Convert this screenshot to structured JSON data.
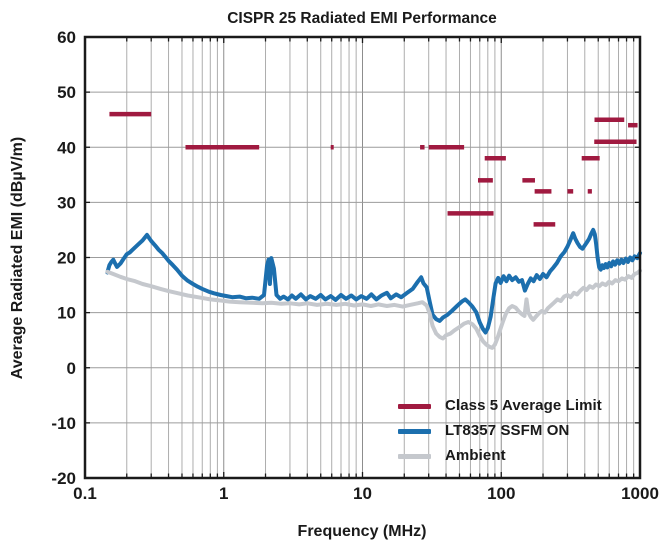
{
  "chart_data": {
    "type": "line",
    "title": "CISPR 25 Radiated EMI Performance",
    "xlabel": "Frequency (MHz)",
    "ylabel": "Average Radiated EMI (dBµV/m)",
    "xscale": "log",
    "xlim": [
      0.1,
      1000
    ],
    "ylim": [
      -20,
      60
    ],
    "xticks": [
      0.1,
      1,
      10,
      100,
      1000
    ],
    "xtick_labels": [
      "0.1",
      "1",
      "10",
      "100",
      "1000"
    ],
    "yticks": [
      -20,
      -10,
      0,
      10,
      20,
      30,
      40,
      50,
      60
    ],
    "ytick_labels": [
      "-20",
      "-10",
      "0",
      "10",
      "20",
      "30",
      "40",
      "50",
      "60"
    ],
    "grid": true,
    "legend_position": "lower right",
    "colors": {
      "limit": "#A01A40",
      "ssfm": "#1C6FAE",
      "ambient": "#C5C8CD",
      "grid": "#9c9c9c",
      "frame": "#1a1a1a",
      "text": "#1a1a1a"
    },
    "series": [
      {
        "name": "Class 5 Average Limit",
        "type": "segments",
        "color_key": "limit",
        "segments_format": [
          "f_start_MHz",
          "f_end_MHz",
          "limit_dBuV_per_m"
        ],
        "segments": [
          [
            0.15,
            0.3,
            46
          ],
          [
            0.53,
            1.8,
            40
          ],
          [
            5.9,
            6.2,
            40
          ],
          [
            26,
            28,
            40
          ],
          [
            30,
            54,
            40
          ],
          [
            41,
            88,
            28
          ],
          [
            68,
            87,
            34
          ],
          [
            76,
            108,
            38
          ],
          [
            142,
            175,
            34
          ],
          [
            171,
            245,
            26
          ],
          [
            174,
            230,
            32
          ],
          [
            300,
            330,
            32
          ],
          [
            380,
            512,
            38
          ],
          [
            420,
            450,
            32
          ],
          [
            468,
            944,
            41
          ],
          [
            470,
            770,
            45
          ],
          [
            820,
            960,
            44
          ]
        ]
      },
      {
        "name": "LT8357 SSFM ON",
        "type": "line",
        "color_key": "ssfm",
        "points": [
          [
            0.145,
            17.3
          ],
          [
            0.15,
            18.6
          ],
          [
            0.155,
            19.2
          ],
          [
            0.16,
            19.6
          ],
          [
            0.165,
            18.9
          ],
          [
            0.17,
            18.3
          ],
          [
            0.18,
            18.9
          ],
          [
            0.19,
            19.8
          ],
          [
            0.2,
            20.6
          ],
          [
            0.21,
            20.9
          ],
          [
            0.22,
            21.4
          ],
          [
            0.24,
            22.3
          ],
          [
            0.26,
            23.1
          ],
          [
            0.28,
            24.1
          ],
          [
            0.29,
            23.5
          ],
          [
            0.3,
            23.0
          ],
          [
            0.32,
            22.2
          ],
          [
            0.34,
            21.4
          ],
          [
            0.36,
            20.8
          ],
          [
            0.38,
            20.1
          ],
          [
            0.4,
            19.4
          ],
          [
            0.43,
            18.6
          ],
          [
            0.46,
            17.8
          ],
          [
            0.5,
            16.7
          ],
          [
            0.55,
            15.8
          ],
          [
            0.6,
            15.2
          ],
          [
            0.65,
            14.7
          ],
          [
            0.7,
            14.3
          ],
          [
            0.78,
            13.8
          ],
          [
            0.85,
            13.5
          ],
          [
            0.95,
            13.2
          ],
          [
            1.05,
            13.0
          ],
          [
            1.15,
            12.8
          ],
          [
            1.3,
            12.9
          ],
          [
            1.45,
            12.6
          ],
          [
            1.6,
            12.7
          ],
          [
            1.8,
            12.5
          ],
          [
            1.95,
            13.2
          ],
          [
            2.05,
            18.5
          ],
          [
            2.1,
            19.6
          ],
          [
            2.15,
            15.2
          ],
          [
            2.2,
            19.9
          ],
          [
            2.3,
            18.0
          ],
          [
            2.4,
            13.2
          ],
          [
            2.55,
            12.5
          ],
          [
            2.7,
            12.9
          ],
          [
            2.9,
            12.4
          ],
          [
            3.1,
            13.1
          ],
          [
            3.3,
            12.5
          ],
          [
            3.6,
            13.3
          ],
          [
            3.9,
            12.4
          ],
          [
            4.2,
            13.0
          ],
          [
            4.6,
            12.5
          ],
          [
            5.0,
            13.2
          ],
          [
            5.4,
            12.4
          ],
          [
            5.9,
            13.0
          ],
          [
            6.4,
            12.3
          ],
          [
            7.0,
            13.2
          ],
          [
            7.6,
            12.5
          ],
          [
            8.3,
            13.1
          ],
          [
            9.0,
            12.4
          ],
          [
            9.8,
            13.0
          ],
          [
            10.7,
            12.5
          ],
          [
            11.6,
            13.3
          ],
          [
            12.6,
            12.4
          ],
          [
            13.7,
            13.1
          ],
          [
            15,
            13.6
          ],
          [
            16,
            12.6
          ],
          [
            17.5,
            13.3
          ],
          [
            19,
            12.8
          ],
          [
            21,
            13.6
          ],
          [
            23,
            14.3
          ],
          [
            25,
            15.6
          ],
          [
            26.5,
            16.4
          ],
          [
            27.5,
            15.3
          ],
          [
            29,
            14.6
          ],
          [
            30.5,
            12.0
          ],
          [
            32,
            9.6
          ],
          [
            34,
            8.8
          ],
          [
            36,
            8.5
          ],
          [
            38,
            9.1
          ],
          [
            41,
            9.6
          ],
          [
            44,
            10.3
          ],
          [
            48,
            11.2
          ],
          [
            52,
            12.0
          ],
          [
            55,
            12.4
          ],
          [
            58,
            11.9
          ],
          [
            62,
            11.1
          ],
          [
            66,
            10.1
          ],
          [
            70,
            8.2
          ],
          [
            74,
            7.0
          ],
          [
            77,
            6.4
          ],
          [
            80,
            7.2
          ],
          [
            84,
            9.3
          ],
          [
            88,
            12.8
          ],
          [
            91,
            15.3
          ],
          [
            95,
            16.3
          ],
          [
            99,
            15.4
          ],
          [
            104,
            16.6
          ],
          [
            109,
            15.7
          ],
          [
            114,
            16.7
          ],
          [
            120,
            15.9
          ],
          [
            127,
            16.4
          ],
          [
            134,
            15.6
          ],
          [
            141,
            15.9
          ],
          [
            148,
            14.0
          ],
          [
            155,
            15.2
          ],
          [
            163,
            16.2
          ],
          [
            171,
            15.7
          ],
          [
            180,
            16.8
          ],
          [
            190,
            16.1
          ],
          [
            200,
            17.0
          ],
          [
            212,
            16.4
          ],
          [
            225,
            17.5
          ],
          [
            238,
            18.2
          ],
          [
            252,
            19.0
          ],
          [
            268,
            20.2
          ],
          [
            285,
            21.0
          ],
          [
            300,
            22.0
          ],
          [
            315,
            23.2
          ],
          [
            330,
            24.4
          ],
          [
            342,
            23.4
          ],
          [
            355,
            22.6
          ],
          [
            370,
            21.9
          ],
          [
            385,
            21.6
          ],
          [
            400,
            22.2
          ],
          [
            415,
            22.8
          ],
          [
            430,
            23.4
          ],
          [
            445,
            24.3
          ],
          [
            460,
            25.0
          ],
          [
            472,
            24.2
          ],
          [
            483,
            22.5
          ],
          [
            495,
            20.0
          ],
          [
            508,
            18.2
          ],
          [
            522,
            17.8
          ],
          [
            536,
            18.6
          ],
          [
            550,
            18.1
          ],
          [
            566,
            18.8
          ],
          [
            582,
            18.2
          ],
          [
            600,
            19.0
          ],
          [
            620,
            18.4
          ],
          [
            640,
            19.3
          ],
          [
            662,
            18.7
          ],
          [
            685,
            19.5
          ],
          [
            710,
            18.9
          ],
          [
            735,
            19.6
          ],
          [
            760,
            19.0
          ],
          [
            790,
            19.8
          ],
          [
            820,
            19.2
          ],
          [
            850,
            20.0
          ],
          [
            880,
            19.5
          ],
          [
            915,
            20.2
          ],
          [
            955,
            19.9
          ],
          [
            1000,
            20.8
          ]
        ]
      },
      {
        "name": "Ambient",
        "type": "line",
        "color_key": "ambient",
        "points": [
          [
            0.145,
            17.4
          ],
          [
            0.16,
            17.0
          ],
          [
            0.18,
            16.5
          ],
          [
            0.2,
            16.1
          ],
          [
            0.23,
            15.7
          ],
          [
            0.26,
            15.2
          ],
          [
            0.3,
            14.8
          ],
          [
            0.35,
            14.3
          ],
          [
            0.4,
            13.9
          ],
          [
            0.47,
            13.5
          ],
          [
            0.55,
            13.1
          ],
          [
            0.65,
            12.8
          ],
          [
            0.8,
            12.4
          ],
          [
            0.95,
            12.2
          ],
          [
            1.1,
            12.0
          ],
          [
            1.3,
            11.9
          ],
          [
            1.6,
            11.8
          ],
          [
            1.9,
            11.7
          ],
          [
            2.2,
            11.8
          ],
          [
            2.6,
            11.6
          ],
          [
            3.0,
            11.7
          ],
          [
            3.5,
            11.5
          ],
          [
            4.0,
            11.7
          ],
          [
            4.7,
            11.4
          ],
          [
            5.5,
            11.6
          ],
          [
            6.5,
            11.4
          ],
          [
            7.5,
            11.6
          ],
          [
            8.7,
            11.3
          ],
          [
            10,
            11.5
          ],
          [
            11.5,
            11.2
          ],
          [
            13,
            11.5
          ],
          [
            15,
            11.2
          ],
          [
            17,
            11.4
          ],
          [
            19.5,
            11.1
          ],
          [
            22,
            11.4
          ],
          [
            25,
            11.7
          ],
          [
            27,
            11.9
          ],
          [
            29,
            11.3
          ],
          [
            30.5,
            9.8
          ],
          [
            32,
            7.6
          ],
          [
            34,
            6.2
          ],
          [
            36,
            5.6
          ],
          [
            38,
            5.3
          ],
          [
            40,
            5.9
          ],
          [
            43,
            6.2
          ],
          [
            46,
            6.8
          ],
          [
            50,
            7.4
          ],
          [
            54,
            8.0
          ],
          [
            58,
            8.3
          ],
          [
            62,
            7.9
          ],
          [
            66,
            7.1
          ],
          [
            70,
            5.8
          ],
          [
            74,
            4.8
          ],
          [
            78,
            4.2
          ],
          [
            82,
            3.8
          ],
          [
            86,
            3.6
          ],
          [
            90,
            4.2
          ],
          [
            94,
            5.4
          ],
          [
            98,
            6.8
          ],
          [
            103,
            8.4
          ],
          [
            108,
            9.8
          ],
          [
            114,
            10.8
          ],
          [
            120,
            11.2
          ],
          [
            127,
            10.9
          ],
          [
            134,
            10.2
          ],
          [
            141,
            9.7
          ],
          [
            147,
            9.4
          ],
          [
            152,
            12.4
          ],
          [
            157,
            10.0
          ],
          [
            163,
            9.2
          ],
          [
            170,
            8.7
          ],
          [
            178,
            9.3
          ],
          [
            187,
            9.9
          ],
          [
            196,
            10.3
          ],
          [
            206,
            10.0
          ],
          [
            217,
            10.8
          ],
          [
            228,
            11.3
          ],
          [
            240,
            11.8
          ],
          [
            254,
            12.4
          ],
          [
            268,
            12.1
          ],
          [
            284,
            12.9
          ],
          [
            300,
            13.2
          ],
          [
            316,
            12.8
          ],
          [
            334,
            13.6
          ],
          [
            352,
            13.3
          ],
          [
            372,
            14.0
          ],
          [
            392,
            14.5
          ],
          [
            412,
            14.1
          ],
          [
            434,
            14.8
          ],
          [
            458,
            14.5
          ],
          [
            482,
            15.1
          ],
          [
            508,
            14.8
          ],
          [
            536,
            15.3
          ],
          [
            566,
            15.0
          ],
          [
            598,
            15.6
          ],
          [
            630,
            15.3
          ],
          [
            665,
            15.9
          ],
          [
            700,
            15.7
          ],
          [
            740,
            16.2
          ],
          [
            780,
            16.0
          ],
          [
            825,
            16.6
          ],
          [
            870,
            16.3
          ],
          [
            915,
            17.0
          ],
          [
            960,
            17.2
          ],
          [
            1000,
            17.6
          ]
        ]
      }
    ]
  }
}
